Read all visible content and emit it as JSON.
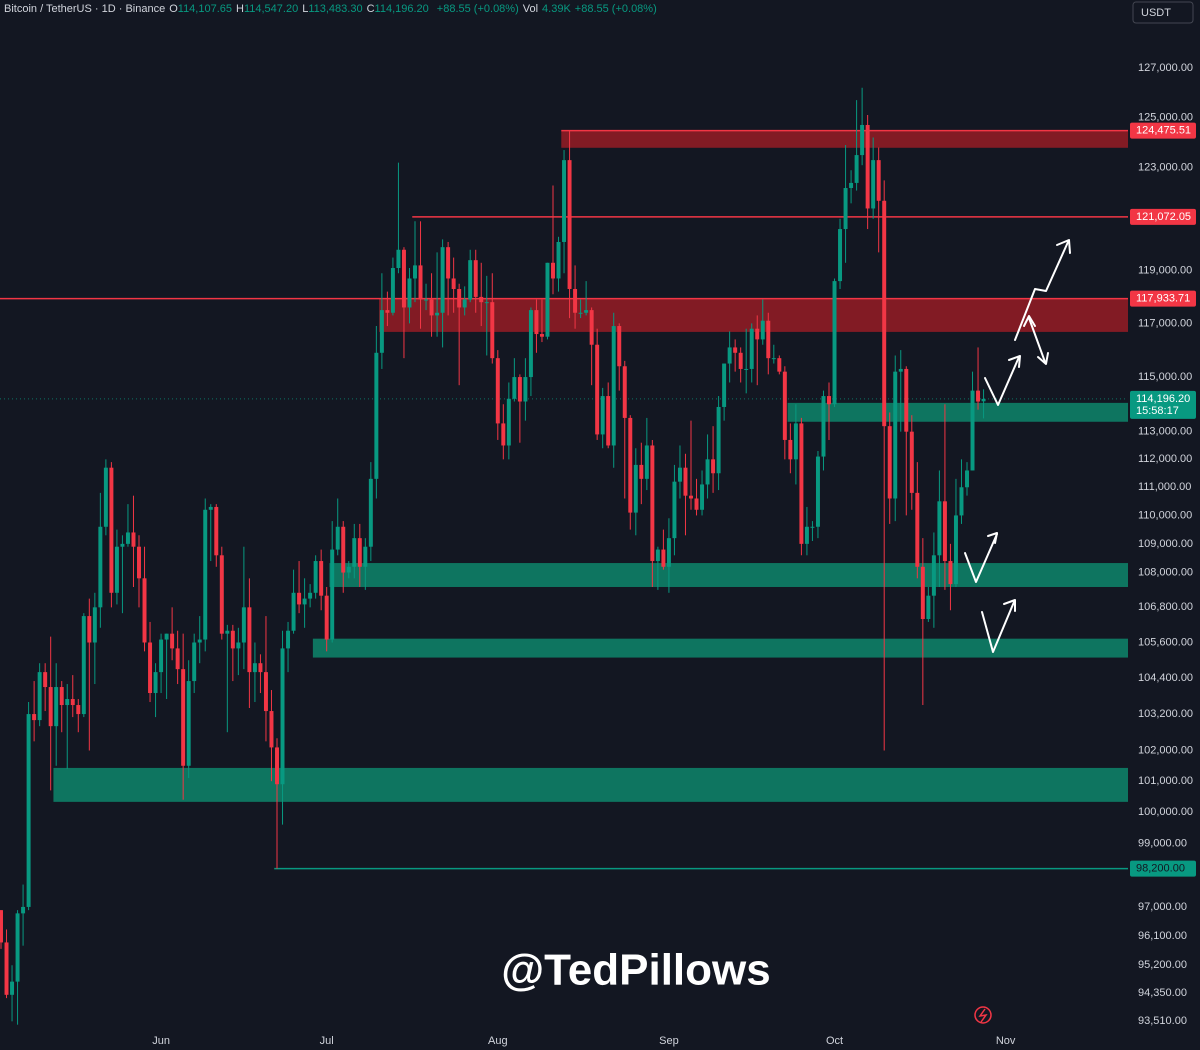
{
  "header": {
    "symbol": "Bitcoin / TetherUS · 1D · Binance",
    "fields": [
      {
        "key": "O",
        "value": "114,107.65"
      },
      {
        "key": "H",
        "value": "114,547.20"
      },
      {
        "key": "L",
        "value": "113,483.30"
      },
      {
        "key": "C",
        "value": "114,196.20"
      }
    ],
    "change": "+88.55 (+0.08%)",
    "volume_key": "Vol",
    "volume": "4.39K",
    "volume_change": "+88.55 (+0.08%)"
  },
  "currency": "USDT",
  "watermark": "@TedPillows",
  "chart_data": {
    "type": "candlestick",
    "log": true,
    "grid": false,
    "up_color": "#089981",
    "down_color": "#f23645",
    "categories": [
      null,
      null,
      null,
      null,
      null,
      null,
      null,
      null,
      null,
      null,
      null,
      null,
      null,
      null,
      null,
      null,
      null,
      null,
      null,
      null,
      null,
      null,
      null,
      null,
      null,
      null,
      null,
      null,
      null,
      "Jun",
      null,
      null,
      null,
      null,
      null,
      null,
      null,
      null,
      null,
      null,
      null,
      null,
      null,
      null,
      null,
      null,
      null,
      null,
      null,
      null,
      null,
      null,
      null,
      null,
      null,
      null,
      null,
      null,
      null,
      "Jul",
      null,
      null,
      null,
      null,
      null,
      null,
      null,
      null,
      null,
      null,
      null,
      null,
      null,
      null,
      null,
      null,
      null,
      null,
      null,
      null,
      null,
      null,
      null,
      null,
      null,
      null,
      null,
      null,
      null,
      null,
      "Aug",
      null,
      null,
      null,
      null,
      null,
      null,
      null,
      null,
      null,
      null,
      null,
      null,
      null,
      null,
      null,
      null,
      null,
      null,
      null,
      null,
      null,
      null,
      null,
      null,
      null,
      null,
      null,
      null,
      null,
      null,
      "Sep",
      null,
      null,
      null,
      null,
      null,
      null,
      null,
      null,
      null,
      null,
      null,
      null,
      null,
      null,
      null,
      null,
      null,
      null,
      null,
      null,
      null,
      null,
      null,
      null,
      null,
      null,
      null,
      null,
      null,
      "Oct",
      null,
      null,
      null,
      null,
      null,
      null,
      null,
      null,
      null,
      null,
      null,
      null,
      null,
      null,
      null,
      null,
      null,
      null,
      null,
      null,
      null,
      null,
      null,
      null,
      null,
      null,
      null,
      null,
      null,
      null,
      "Nov"
    ],
    "open": [
      96900,
      95900,
      94300,
      94700,
      96800,
      97000,
      103200,
      103000,
      104600,
      104100,
      102800,
      104100,
      103500,
      103700,
      103500,
      103200,
      106500,
      105600,
      106800,
      109600,
      111700,
      107300,
      108900,
      109000,
      109400,
      108900,
      107800,
      105600,
      103900,
      104600,
      105700,
      105900,
      105400,
      104700,
      101500,
      104300,
      105600,
      105700,
      110200,
      110300,
      108600,
      105900,
      106000,
      105400,
      105600,
      106800,
      104600,
      104900,
      104600,
      103300,
      102100,
      100900,
      105400,
      106000,
      107300,
      106900,
      107100,
      107300,
      108400,
      107200,
      105700,
      108800,
      109600,
      108000,
      108200,
      109200,
      108200,
      108900,
      111300,
      115900,
      117500,
      117400,
      119100,
      119800,
      117600,
      118700,
      119200,
      117900,
      117900,
      117300,
      117400,
      119900,
      118700,
      118300,
      117600,
      117900,
      119400,
      118000,
      117800,
      117800,
      115700,
      113300,
      112500,
      114200,
      115000,
      114100,
      115000,
      117500,
      116600,
      116500,
      119300,
      118700,
      120100,
      123300,
      118300,
      117400,
      117400,
      117500,
      116200,
      112900,
      114300,
      112500,
      116900,
      115400,
      113500,
      110100,
      111800,
      111300,
      112500,
      108400,
      108800,
      108200,
      109200,
      111200,
      111700,
      110700,
      110600,
      110200,
      111100,
      112000,
      111500,
      113900,
      115500,
      116100,
      115900,
      115300,
      115300,
      116800,
      116400,
      117100,
      115700,
      115700,
      115200,
      112700,
      112000,
      113300,
      109000,
      109600,
      109600,
      112100,
      114300,
      114000,
      118600,
      120600,
      122200,
      122400,
      123500,
      124700,
      121400,
      123300,
      121700,
      113200,
      110600,
      115200,
      115300,
      113000,
      110800,
      108200,
      106400,
      107200,
      108600,
      110500,
      108400,
      107600,
      110000,
      111000,
      111600,
      114500,
      114107.65,
      null,
      null,
      null,
      null
    ],
    "high": [
      96900,
      96300,
      95200,
      96900,
      97700,
      103600,
      104300,
      104900,
      104900,
      105800,
      104900,
      104300,
      104200,
      104500,
      103700,
      106600,
      107100,
      107300,
      110800,
      112000,
      111900,
      109500,
      109300,
      110400,
      110700,
      109300,
      108900,
      106300,
      104900,
      105900,
      105900,
      106800,
      106000,
      105900,
      105000,
      105900,
      106500,
      110600,
      110400,
      110400,
      108900,
      106200,
      106200,
      106100,
      108900,
      107800,
      105600,
      105200,
      106500,
      104000,
      102400,
      106000,
      106300,
      108100,
      108400,
      107800,
      107600,
      108600,
      108800,
      107500,
      109800,
      110600,
      109800,
      108400,
      109700,
      109700,
      109200,
      111900,
      116900,
      118900,
      118200,
      119500,
      123200,
      119900,
      119100,
      120900,
      120900,
      118500,
      118900,
      119700,
      120200,
      120100,
      119500,
      118500,
      118400,
      119800,
      119800,
      119300,
      118800,
      118900,
      116000,
      114000,
      114800,
      115700,
      115100,
      115700,
      117600,
      117900,
      117900,
      119300,
      122300,
      120300,
      123700,
      124500,
      119200,
      117900,
      118600,
      117600,
      116800,
      114600,
      114800,
      117400,
      117000,
      115600,
      113600,
      112400,
      112600,
      113500,
      112700,
      108900,
      109500,
      109900,
      111800,
      112500,
      112200,
      113400,
      111300,
      111600,
      112900,
      113200,
      114300,
      115500,
      116700,
      116400,
      116100,
      116800,
      117000,
      117300,
      117900,
      117400,
      116200,
      115800,
      115400,
      113300,
      114000,
      113500,
      110300,
      109800,
      112300,
      114500,
      114800,
      118700,
      121000,
      123900,
      122900,
      125700,
      126200,
      125100,
      124200,
      123800,
      122500,
      113700,
      115800,
      116000,
      115400,
      113600,
      111900,
      109200,
      107500,
      109400,
      111600,
      114000,
      109000,
      111300,
      112000,
      111900,
      115200,
      116100,
      114547.2,
      null,
      null,
      null,
      null
    ],
    "low": [
      95700,
      94200,
      93500,
      93400,
      95800,
      96900,
      102300,
      102800,
      103300,
      100700,
      101500,
      102600,
      101400,
      103100,
      102600,
      103100,
      102000,
      104200,
      106100,
      109300,
      106800,
      106900,
      106600,
      108900,
      107500,
      106800,
      105300,
      103600,
      103100,
      103900,
      103700,
      105000,
      104200,
      100400,
      101100,
      103900,
      104900,
      105300,
      108400,
      108200,
      105700,
      102600,
      104300,
      104500,
      104700,
      103400,
      103600,
      103900,
      102300,
      101000,
      98200,
      99600,
      104600,
      105900,
      106600,
      106100,
      106800,
      107100,
      106700,
      105300,
      105600,
      108600,
      107300,
      107800,
      107800,
      107500,
      107400,
      108400,
      110600,
      115300,
      116900,
      117300,
      118900,
      115700,
      117000,
      117800,
      116800,
      117500,
      116500,
      116500,
      116100,
      117300,
      117400,
      114700,
      117300,
      117800,
      117400,
      116900,
      115800,
      115500,
      112700,
      112000,
      112000,
      114100,
      112600,
      113400,
      114300,
      115900,
      116300,
      116400,
      118100,
      118200,
      118900,
      117200,
      116800,
      117200,
      117300,
      114700,
      112700,
      112400,
      112400,
      111700,
      114500,
      110600,
      109500,
      109300,
      110400,
      110900,
      107500,
      107400,
      108100,
      107300,
      108600,
      110600,
      109300,
      110200,
      110000,
      110000,
      110600,
      110800,
      110900,
      113400,
      114800,
      115200,
      114800,
      114400,
      114800,
      114700,
      116200,
      115100,
      115500,
      115100,
      112000,
      111500,
      111100,
      108600,
      108600,
      109100,
      109200,
      111600,
      112700,
      113900,
      118300,
      119300,
      121600,
      122100,
      123100,
      120600,
      121000,
      119700,
      102000,
      109700,
      109800,
      113000,
      110000,
      110200,
      107800,
      103500,
      106300,
      106100,
      107500,
      107400,
      106700,
      107500,
      109700,
      110700,
      111600,
      113800,
      113483.3,
      null,
      null,
      null,
      null
    ],
    "close": [
      95900,
      94300,
      94700,
      96800,
      97000,
      103200,
      103000,
      104600,
      104100,
      102800,
      104100,
      103500,
      103700,
      103500,
      103200,
      106500,
      105600,
      106800,
      109600,
      111700,
      107300,
      108900,
      109000,
      109400,
      108900,
      107800,
      105600,
      103900,
      104600,
      105700,
      105900,
      105400,
      104700,
      101500,
      104300,
      105600,
      105700,
      110200,
      110300,
      108600,
      105900,
      106000,
      105400,
      105600,
      106800,
      104600,
      104900,
      104600,
      103300,
      102100,
      100900,
      105400,
      106000,
      107300,
      106900,
      107100,
      107300,
      108400,
      107200,
      105700,
      108800,
      109600,
      108000,
      108200,
      109200,
      108200,
      108900,
      111300,
      115900,
      117500,
      117400,
      119100,
      119800,
      117600,
      118700,
      119200,
      117900,
      117900,
      117300,
      117400,
      119900,
      118700,
      118300,
      117600,
      117900,
      119400,
      118000,
      117800,
      117800,
      115700,
      113300,
      112500,
      114200,
      115000,
      114100,
      115000,
      117500,
      116600,
      116500,
      119300,
      118700,
      120100,
      123300,
      118300,
      117400,
      117400,
      117500,
      116200,
      112900,
      114300,
      112500,
      116900,
      115400,
      113500,
      110100,
      111800,
      111300,
      112500,
      108400,
      108800,
      108200,
      109200,
      111200,
      111700,
      110700,
      110600,
      110200,
      111100,
      112000,
      111500,
      113900,
      115500,
      116100,
      115900,
      115300,
      115300,
      116800,
      116400,
      117100,
      115700,
      115700,
      115200,
      112700,
      112000,
      113300,
      109000,
      109600,
      109600,
      112100,
      114300,
      114000,
      118600,
      120600,
      122200,
      122400,
      123500,
      124700,
      121400,
      123300,
      121700,
      113200,
      110600,
      115200,
      115300,
      113000,
      110800,
      108200,
      106400,
      107200,
      108600,
      110500,
      108400,
      107600,
      110000,
      111000,
      111600,
      114500,
      114100,
      114196.2,
      null,
      null,
      null,
      null
    ],
    "last_label": "114,196.20",
    "countdown": "15:58:17",
    "ylim": [
      93240,
      128770
    ],
    "yticks": [
      {
        "value": 127000,
        "label": "127,000.00"
      },
      {
        "value": 125000,
        "label": "125,000.00"
      },
      {
        "value": 123000,
        "label": "123,000.00"
      },
      {
        "value": 119000,
        "label": "119,000.00"
      },
      {
        "value": 117000,
        "label": "117,000.00"
      },
      {
        "value": 115000,
        "label": "115,000.00"
      },
      {
        "value": 113000,
        "label": "113,000.00"
      },
      {
        "value": 112000,
        "label": "112,000.00"
      },
      {
        "value": 111000,
        "label": "111,000.00"
      },
      {
        "value": 110000,
        "label": "110,000.00"
      },
      {
        "value": 109000,
        "label": "109,000.00"
      },
      {
        "value": 108000,
        "label": "108,000.00"
      },
      {
        "value": 106800,
        "label": "106,800.00"
      },
      {
        "value": 105600,
        "label": "105,600.00"
      },
      {
        "value": 104400,
        "label": "104,400.00"
      },
      {
        "value": 103200,
        "label": "103,200.00"
      },
      {
        "value": 102000,
        "label": "102,000.00"
      },
      {
        "value": 101000,
        "label": "101,000.00"
      },
      {
        "value": 100000,
        "label": "100,000.00"
      },
      {
        "value": 99000,
        "label": "99,000.00"
      },
      {
        "value": 97000,
        "label": "97,000.00"
      },
      {
        "value": 96100,
        "label": "96,100.00"
      },
      {
        "value": 95200,
        "label": "95,200.00"
      },
      {
        "value": 94350,
        "label": "94,350.00"
      },
      {
        "value": 93510,
        "label": "93,510.00"
      }
    ],
    "zones": [
      {
        "low": 123790,
        "high": 124475.51,
        "start": 102,
        "color": "#8f1c25"
      },
      {
        "low": 116680,
        "high": 117933.71,
        "start": 69,
        "color": "#8f1c25"
      },
      {
        "low": 113360,
        "high": 114050,
        "start": 143,
        "color": "#0e7f67"
      },
      {
        "low": 107500,
        "high": 108330,
        "start": 60,
        "color": "#0e7f67"
      },
      {
        "low": 105090,
        "high": 105730,
        "start": 57,
        "color": "#0e7f67"
      },
      {
        "low": 100330,
        "high": 101430,
        "start": 10,
        "color": "#0e7f67"
      }
    ],
    "levels": [
      {
        "value": 124475.51,
        "label": "124,475.51",
        "start": 102,
        "color": "#f23645"
      },
      {
        "value": 121072.05,
        "label": "121,072.05",
        "start": 75,
        "color": "#f23645"
      },
      {
        "value": 117933.71,
        "label": "117,933.71",
        "start": 0,
        "color": "#f23645"
      },
      {
        "value": 98200,
        "label": "98,200.00",
        "start": 50,
        "color": "#089981"
      }
    ]
  }
}
